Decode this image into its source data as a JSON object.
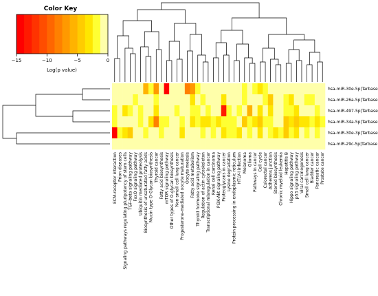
{
  "chart_data": {
    "type": "heatmap",
    "color_key": {
      "title": "Color Key",
      "xlabel": "Log(p value)",
      "range": [
        -15,
        0
      ],
      "ticks": [
        -15,
        -10,
        -5,
        0
      ],
      "colors": [
        "#ff0000",
        "#ff1a00",
        "#ff3300",
        "#ff4d00",
        "#ff6600",
        "#ff8000",
        "#ff9900",
        "#ffb300",
        "#ffcc00",
        "#ffe600",
        "#ffff33",
        "#ffffaa"
      ]
    },
    "rows": [
      "hsa-miR-30e-5p|Tarbase",
      "hsa-miR-26a-5p|Tarbase",
      "hsa-miR-497-5p|Tarbase",
      "hsa-miR-34a-5p|Tarbase",
      "hsa-miR-30e-3p|Tarbase",
      "hsa-miR-29c-5p|Tarbase"
    ],
    "columns": [
      "ECM-receptor interaction",
      "Prion diseases",
      "Signaling pathways regulating pluripotency of stem cells",
      "TGF-beta signaling pathway",
      "FoxO signaling pathway",
      "Ubiquitin mediated proteolysis",
      "Biosynthesis of unsaturated fatty acids",
      "Mucin type O-Glycan biosynthesis",
      "Thyroid cancer",
      "Fatty acid biosynthesis",
      "mTOR signaling pathway",
      "Other types of O-glycan biosynthesis",
      "Non-small cell lung cancer",
      "Progesterone-mediated oocyte maturation",
      "Oocyte meiosis",
      "Fatty acid metabolism",
      "Thyroid hormone signaling pathway",
      "Regulation of actin cytoskeleton",
      "Transcriptional misregulation in cancer",
      "Renal cell carcinoma",
      "PI3K-Akt signaling pathway",
      "Proteoglycans in cancer",
      "Lysine degradation",
      "Protein processing in endoplasmic reticulum",
      "HTLV-I infection",
      "Melanoma",
      "Glioma",
      "Pathways in cancer",
      "Cell cycle",
      "Colorectal cancer",
      "Adherens junction",
      "Steroid biosynthesis",
      "Chronic myeloid leukemia",
      "Hepatitis B",
      "Hippo signaling pathway",
      "p53 signaling pathway",
      "Viral carcinogenesis",
      "Small cell lung cancer",
      "Bladder cancer",
      "Pancreatic cancer",
      "Prostate cancer"
    ],
    "values": [
      [
        0,
        0,
        0,
        0,
        0,
        0,
        -6,
        -2,
        -7,
        0,
        -14,
        0,
        0,
        0,
        -8,
        -7,
        -2,
        0,
        0,
        0,
        -1,
        0,
        0,
        0,
        -1,
        -2,
        -1,
        -2,
        -3,
        -2,
        -1,
        0,
        -1,
        0,
        0,
        0,
        0,
        0,
        0,
        0,
        0
      ],
      [
        0,
        0,
        0,
        0,
        -2,
        0,
        0,
        0,
        -2,
        -1,
        0,
        0,
        0,
        0,
        0,
        -3,
        0,
        -2,
        0,
        -1,
        0,
        -3,
        -1,
        0,
        0,
        -2,
        0,
        0,
        -1,
        -2,
        -4,
        0,
        0,
        -2,
        -3,
        0,
        0,
        -2,
        -2,
        -1,
        0
      ],
      [
        -2,
        0,
        -3,
        -2,
        0,
        -2,
        0,
        0,
        -3,
        0,
        -1,
        0,
        -2,
        -1,
        0,
        -2,
        -2,
        0,
        -2,
        0,
        0,
        -13,
        -2,
        0,
        -2,
        -1,
        -6,
        0,
        -3,
        -1,
        -3,
        0,
        0,
        -2,
        -2,
        -3,
        0,
        0,
        0,
        -2,
        0
      ],
      [
        -2,
        -1,
        0,
        0,
        -1,
        -2,
        0,
        -3,
        -8,
        -2,
        -2,
        -1,
        -1,
        -2,
        0,
        -3,
        -2,
        -3,
        -3,
        -2,
        -3,
        -2,
        -2,
        -2,
        -1,
        -4,
        -2,
        -3,
        -4,
        -2,
        -2,
        -1,
        -1,
        -4,
        -3,
        -4,
        -3,
        -3,
        -2,
        -3,
        -2
      ],
      [
        -14,
        -2,
        -3,
        -4,
        -1,
        0,
        -2,
        0,
        -1,
        -2,
        0,
        0,
        0,
        -3,
        -1,
        0,
        -1,
        -2,
        0,
        -2,
        -1,
        -3,
        -2,
        -2,
        -3,
        0,
        -2,
        -1,
        -3,
        0,
        -2,
        -3,
        -2,
        -4,
        -2,
        -3,
        -1,
        -2,
        -1,
        -2,
        -1
      ],
      [
        0,
        0,
        0,
        0,
        0,
        0,
        0,
        0,
        0,
        0,
        0,
        0,
        0,
        0,
        0,
        0,
        0,
        0,
        0,
        0,
        0,
        0,
        0,
        0,
        0,
        0,
        0,
        0,
        0,
        0,
        0,
        0,
        0,
        0,
        0,
        0,
        0,
        0,
        0,
        0,
        0
      ]
    ]
  }
}
